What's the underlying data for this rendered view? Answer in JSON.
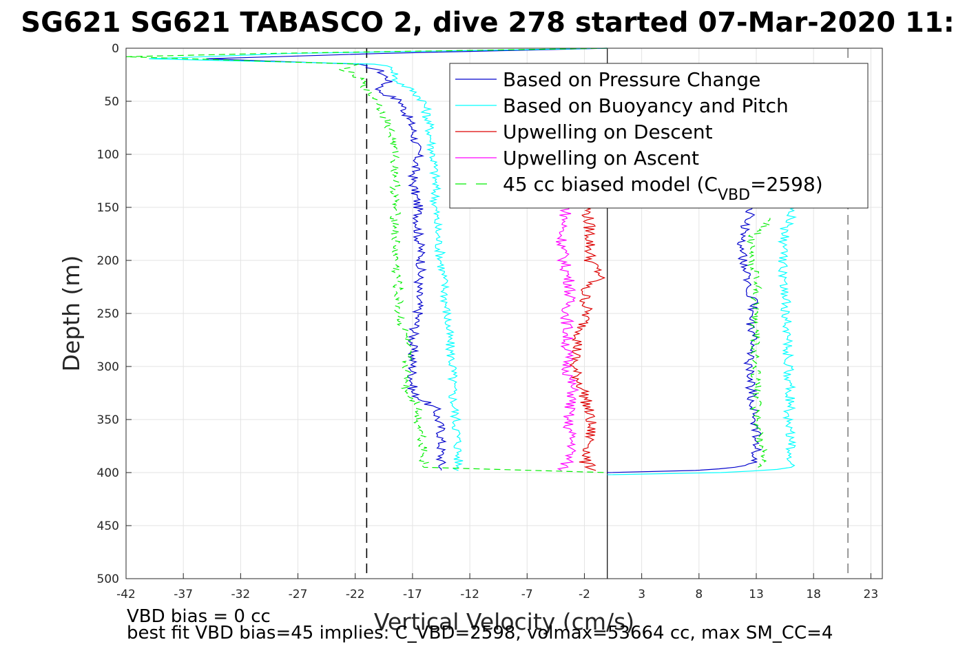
{
  "figure": {
    "title": "SG621 SG621 TABASCO 2, dive 278 started 07-Mar-2020 11:",
    "footnote_line1": "VBD bias = 0 cc",
    "footnote_line2": "best fit VBD bias=45 implies: C_VBD=2598, volmax=53664 cc, max SM_CC=4"
  },
  "chart_data": {
    "type": "line",
    "xlabel": "Vertical Velocity (cm/s)",
    "ylabel": "Depth (m)",
    "xlim": [
      -42,
      24
    ],
    "ylim": [
      0,
      500
    ],
    "y_reversed": true,
    "grid": true,
    "xticks": [
      "-42",
      "-37",
      "-32",
      "-27",
      "-22",
      "-17",
      "-12",
      "-7",
      "-2",
      "3",
      "8",
      "13",
      "18",
      "23"
    ],
    "yticks": [
      "0",
      "50",
      "100",
      "150",
      "200",
      "250",
      "300",
      "350",
      "400",
      "450",
      "500"
    ],
    "vlines": [
      {
        "x": 0,
        "style": "solid",
        "color": "#000000"
      },
      {
        "x": -21,
        "style": "dashed",
        "color": "#000000"
      },
      {
        "x": 21,
        "style": "dashed",
        "color": "#808080"
      }
    ],
    "legend": {
      "position": "top-right",
      "entries": [
        {
          "text": "Based on Pressure Change",
          "color": "#0000cc",
          "dash": "solid"
        },
        {
          "text": "Based on Buoyancy and Pitch",
          "color": "#00ffff",
          "dash": "solid"
        },
        {
          "text": "Upwelling on Descent",
          "color": "#dd0000",
          "dash": "solid"
        },
        {
          "text": "Upwelling on Ascent",
          "color": "#ff00ff",
          "dash": "solid"
        },
        {
          "text": "45 cc biased model (C",
          "sub": "VBD",
          "suffix": "=2598)",
          "color": "#00ee00",
          "dash": "dashed"
        }
      ]
    },
    "series": [
      {
        "name": "Based on Pressure Change",
        "color": "#0000cc",
        "descent": {
          "depth": [
            0,
            5,
            10,
            15,
            20,
            30,
            40,
            50,
            75,
            100,
            125,
            150,
            175,
            200,
            225,
            250,
            275,
            300,
            325,
            340,
            360,
            380,
            395,
            398
          ],
          "velocity": [
            0,
            -20,
            -35,
            -22,
            -20,
            -19,
            -20,
            -18,
            -17,
            -16.5,
            -17,
            -16.5,
            -16.5,
            -16.2,
            -16.5,
            -16.5,
            -17,
            -17,
            -17,
            -15,
            -14.5,
            -14.5,
            -14.5,
            -14.5
          ]
        },
        "ascent": {
          "depth": [
            400,
            398,
            395,
            390,
            380,
            360,
            340,
            320,
            300,
            280,
            260,
            240,
            220,
            200,
            180,
            160,
            150
          ],
          "velocity": [
            0,
            8,
            11,
            13,
            13,
            13,
            12.8,
            12.5,
            12.3,
            12.8,
            12.5,
            12.8,
            12.2,
            11.8,
            11.8,
            12.3,
            12.7
          ]
        }
      },
      {
        "name": "Based on Buoyancy and Pitch",
        "color": "#00ffff",
        "descent": {
          "depth": [
            0,
            5,
            10,
            15,
            20,
            30,
            40,
            50,
            75,
            100,
            125,
            150,
            175,
            200,
            225,
            250,
            275,
            300,
            325,
            350,
            375,
            395,
            398
          ],
          "velocity": [
            0,
            -28,
            -40,
            -20,
            -18.5,
            -18.5,
            -17,
            -16,
            -15.5,
            -15.2,
            -15,
            -15,
            -14.8,
            -14.5,
            -14.2,
            -14,
            -13.8,
            -13.5,
            -13.5,
            -13.2,
            -13,
            -13,
            -13
          ]
        },
        "ascent": {
          "depth": [
            402,
            400,
            397,
            395,
            390,
            370,
            350,
            330,
            300,
            270,
            250,
            230,
            210,
            190,
            170,
            150
          ],
          "velocity": [
            0,
            10,
            15,
            16,
            16,
            16,
            15.8,
            16,
            15.8,
            15.7,
            15.6,
            15.5,
            15.4,
            15.3,
            15.5,
            16.5
          ]
        }
      },
      {
        "name": "Upwelling on Descent",
        "color": "#dd0000",
        "descent": {
          "depth": [
            150,
            175,
            200,
            215,
            225,
            250,
            275,
            300,
            325,
            350,
            375,
            390,
            398
          ],
          "velocity": [
            -1.8,
            -1.5,
            -1.5,
            -0.5,
            -2.0,
            -1.8,
            -2.5,
            -3.0,
            -2.0,
            -1.5,
            -1.5,
            -2.0,
            -1.0
          ]
        },
        "ascent": {
          "depth": [],
          "velocity": []
        }
      },
      {
        "name": "Upwelling on Ascent",
        "color": "#ff00ff",
        "descent": {
          "depth": [
            150,
            175,
            200,
            225,
            250,
            275,
            300,
            325,
            350,
            375,
            390,
            398
          ],
          "velocity": [
            -3.5,
            -4.0,
            -3.8,
            -3.2,
            -3.5,
            -3.5,
            -3.5,
            -3.0,
            -3.5,
            -3.0,
            -3.5,
            -4.0
          ]
        },
        "ascent": {
          "depth": [],
          "velocity": []
        }
      },
      {
        "name": "45 cc biased model (CVBD=2598)",
        "color": "#00ee00",
        "descent": {
          "depth": [
            0,
            5,
            8,
            15,
            20,
            30,
            40,
            50,
            75,
            100,
            125,
            150,
            175,
            200,
            225,
            250,
            275,
            300,
            325,
            335,
            350,
            375,
            395,
            400
          ],
          "velocity": [
            0,
            -30,
            -42,
            -22,
            -23,
            -21.5,
            -21,
            -20,
            -19,
            -18.5,
            -18.5,
            -18.5,
            -18.5,
            -18.5,
            -18.3,
            -18.2,
            -17.5,
            -17.5,
            -17.5,
            -16.5,
            -16.5,
            -16,
            -16,
            0
          ]
        },
        "ascent": {
          "depth": [
            395,
            380,
            360,
            340,
            320,
            300,
            280,
            260,
            240,
            220,
            200,
            180,
            170,
            165,
            160
          ],
          "velocity": [
            13.5,
            13.5,
            13.2,
            13,
            13,
            13,
            13,
            12.8,
            13,
            13,
            12.5,
            12.5,
            13.5,
            14,
            14.2
          ]
        }
      }
    ]
  }
}
